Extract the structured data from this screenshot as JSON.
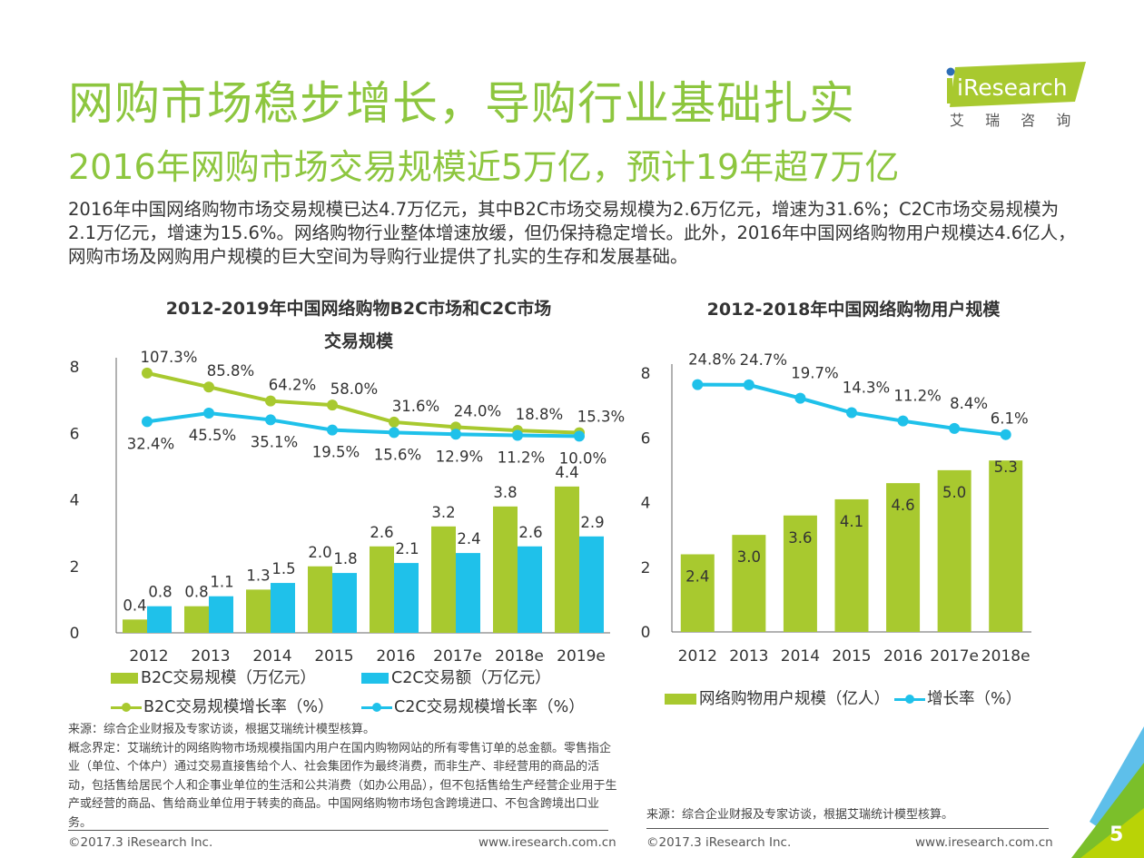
{
  "header": {
    "title": "网购市场稳步增长，导购行业基础扎实",
    "subtitle": "2016年网购市场交易规模近5万亿，预计19年超7万亿",
    "logo_text": "iResearch",
    "logo_cn": "艾  瑞  咨  询",
    "intro": "2016年中国网络购物市场交易规模已达4.7万亿元，其中B2C市场交易规模为2.6万亿元，增速为31.6%；C2C市场交易规模为2.1万亿元，增速为15.6%。网络购物行业整体增速放缓，但仍保持稳定增长。此外，2016年中国网络购物用户规模达4.6亿人，网购市场及网购用户规模的巨大空间为导购行业提供了扎实的生存和发展基础。"
  },
  "colors": {
    "green": "#a8c92f",
    "blue": "#1fc1ea",
    "title_green": "#8dc63f"
  },
  "chart_data": [
    {
      "type": "bar",
      "title": "2012-2019年中国网络购物B2C市场和C2C市场交易规模",
      "title_lines": [
        "2012-2019年中国网络购物B2C市场和C2C市场",
        "交易规模"
      ],
      "categories": [
        "2012",
        "2013",
        "2014",
        "2015",
        "2016",
        "2017e",
        "2018e",
        "2019e"
      ],
      "yticks": [
        "0",
        "2",
        "4",
        "6",
        "8"
      ],
      "ylim": [
        0,
        8
      ],
      "series": [
        {
          "name": "B2C交易规模（万亿元）",
          "kind": "bar",
          "values": [
            0.4,
            0.8,
            1.3,
            2.0,
            2.6,
            3.2,
            3.8,
            4.4
          ],
          "labels": [
            "0.4",
            "0.8",
            "1.3",
            "2.0",
            "2.6",
            "3.2",
            "3.8",
            "4.4"
          ]
        },
        {
          "name": "C2C交易额（万亿元）",
          "kind": "bar",
          "values": [
            0.8,
            1.1,
            1.5,
            1.8,
            2.1,
            2.4,
            2.6,
            2.9
          ],
          "labels": [
            "0.8",
            "1.1",
            "1.5",
            "1.8",
            "2.1",
            "2.4",
            "2.6",
            "2.9"
          ]
        },
        {
          "name": "B2C交易规模增长率（%）",
          "kind": "line",
          "values": [
            107.3,
            85.8,
            64.2,
            58.0,
            31.6,
            24.0,
            18.8,
            15.3
          ],
          "labels": [
            "107.3%",
            "85.8%",
            "64.2%",
            "58.0%",
            "31.6%",
            "24.0%",
            "18.8%",
            "15.3%"
          ]
        },
        {
          "name": "C2C交易规模增长率（%）",
          "kind": "line",
          "values": [
            32.4,
            45.5,
            35.1,
            19.5,
            15.6,
            12.9,
            11.2,
            10.0
          ],
          "labels": [
            "32.4%",
            "45.5%",
            "35.1%",
            "19.5%",
            "15.6%",
            "12.9%",
            "11.2%",
            "10.0%"
          ]
        }
      ],
      "legend": [
        "B2C交易规模（万亿元）",
        "C2C交易额（万亿元）",
        "B2C交易规模增长率（%）",
        "C2C交易规模增长率（%）"
      ],
      "legend_position": "bottom"
    },
    {
      "type": "bar",
      "title": "2012-2018年中国网络购物用户规模",
      "categories": [
        "2012",
        "2013",
        "2014",
        "2015",
        "2016",
        "2017e",
        "2018e"
      ],
      "yticks": [
        "0",
        "2",
        "4",
        "6",
        "8"
      ],
      "ylim": [
        0,
        8
      ],
      "series": [
        {
          "name": "网络购物用户规模（亿人）",
          "kind": "bar",
          "values": [
            2.4,
            3.0,
            3.6,
            4.1,
            4.6,
            5.0,
            5.3
          ],
          "labels": [
            "2.4",
            "3.0",
            "3.6",
            "4.1",
            "4.6",
            "5.0",
            "5.3"
          ]
        },
        {
          "name": "增长率（%）",
          "kind": "line",
          "values": [
            24.8,
            24.7,
            19.7,
            14.3,
            11.2,
            8.4,
            6.1
          ],
          "labels": [
            "24.8%",
            "24.7%",
            "19.7%",
            "14.3%",
            "11.2%",
            "8.4%",
            "6.1%"
          ]
        }
      ],
      "legend": [
        "网络购物用户规模（亿人）",
        "增长率（%）"
      ],
      "legend_position": "bottom"
    }
  ],
  "notes": {
    "left_source": "来源：综合企业财报及专家访谈，根据艾瑞统计模型核算。",
    "left_definition": "概念界定：艾瑞统计的网络购物市场规模指国内用户在国内购物网站的所有零售订单的总金额。零售指企业（单位、个体户）通过交易直接售给个人、社会集团作为最终消费，而非生产、非经营用的商品的活动，包括售给居民个人和企事业单位的生活和公共消费（如办公用品），但不包括售给生产经营企业用于生产或经营的商品、售给商业单位用于转卖的商品。中国网络购物市场包含跨境进口、不包含跨境出口业务。",
    "right_source": "来源：综合企业财报及专家访谈，根据艾瑞统计模型核算。"
  },
  "footer": {
    "copyright": "©2017.3 iResearch Inc.",
    "url": "www.iresearch.com.cn",
    "page_number": "5"
  }
}
